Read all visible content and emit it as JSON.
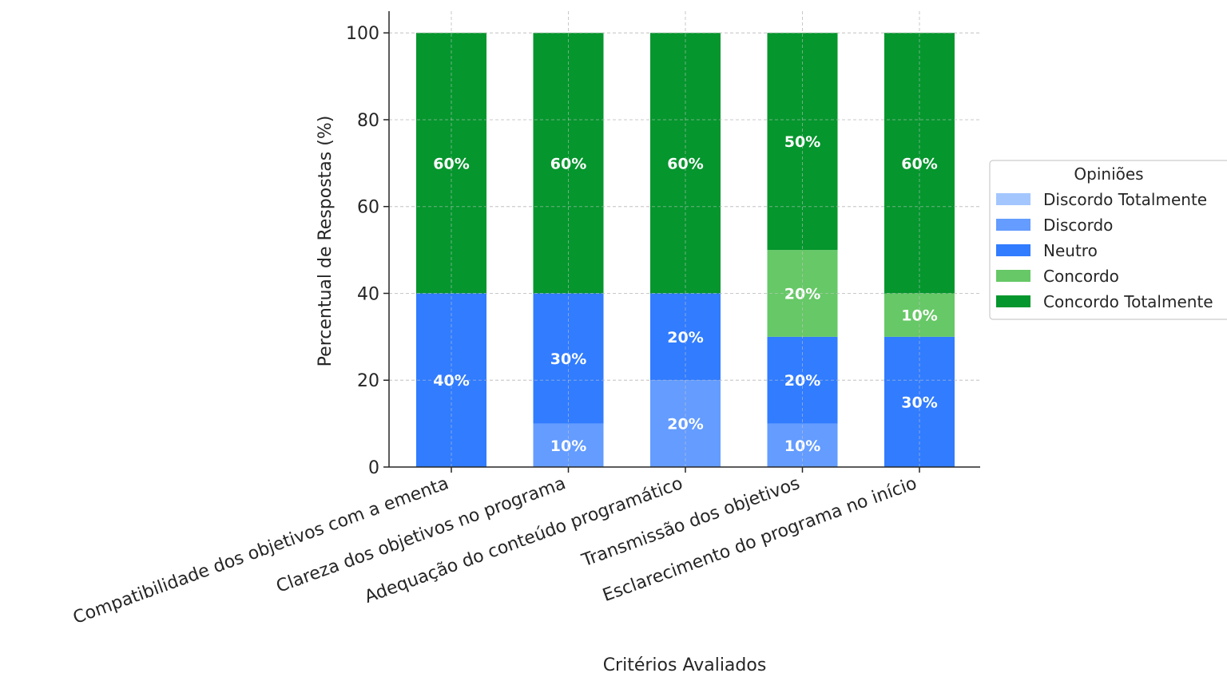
{
  "chart_data": {
    "type": "bar",
    "stacked": true,
    "categories": [
      "Compatibilidade dos objetivos com a ementa",
      "Clareza dos objetivos no programa",
      "Adequação do conteúdo programático",
      "Transmissão dos objetivos",
      "Esclarecimento do programa no início"
    ],
    "series": [
      {
        "name": "Discordo Totalmente",
        "color": "#a3c6ff",
        "values": [
          0,
          0,
          0,
          0,
          0
        ]
      },
      {
        "name": "Discordo",
        "color": "#649cff",
        "values": [
          0,
          10,
          20,
          10,
          0
        ]
      },
      {
        "name": "Neutro",
        "color": "#317cff",
        "values": [
          40,
          30,
          20,
          20,
          30
        ]
      },
      {
        "name": "Concordo",
        "color": "#66c866",
        "values": [
          0,
          0,
          0,
          20,
          10
        ]
      },
      {
        "name": "Concordo Totalmente",
        "color": "#05962d",
        "values": [
          60,
          60,
          60,
          50,
          60
        ]
      }
    ],
    "xlabel": "Critérios Avaliados",
    "ylabel": "Percentual de Respostas (%)",
    "ylim": [
      0,
      105
    ],
    "yticks": [
      0,
      20,
      40,
      60,
      80,
      100
    ],
    "grid": true,
    "legend": {
      "title": "Opiniões",
      "placement": "right"
    },
    "value_label_suffix": "%"
  }
}
